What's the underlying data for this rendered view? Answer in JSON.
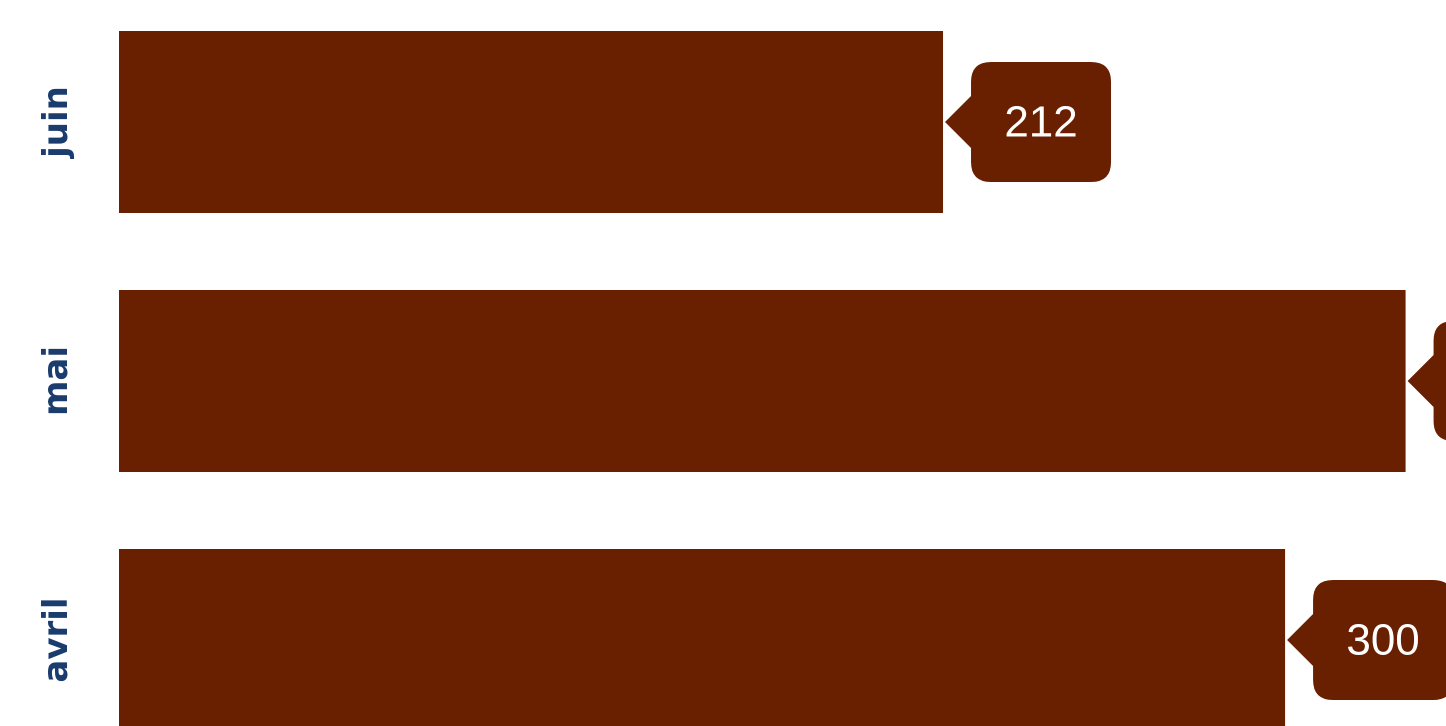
{
  "chart_data": {
    "type": "bar",
    "orientation": "horizontal",
    "categories": [
      "juin",
      "mai",
      "avril"
    ],
    "values": [
      212,
      331,
      300
    ],
    "color": "#692000",
    "label_color": "#1b3d6e",
    "xlim": [
      0,
      341.4
    ]
  }
}
